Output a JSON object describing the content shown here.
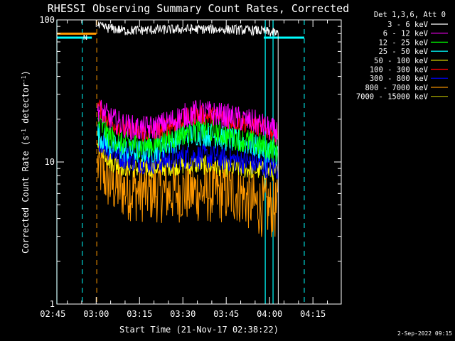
{
  "chart_data": {
    "type": "line",
    "title": "RHESSI Observing Summary Count Rates, Corrected",
    "xlabel": "Start Time (21-Nov-17 02:38:22)",
    "ylabel": "Corrected Count Rate (s",
    "ylabel_sup1": "-1",
    "ylabel_mid": " detector",
    "ylabel_sup2": "-1",
    "ylabel_end": ")",
    "yscale": "log",
    "ylim": [
      1,
      100
    ],
    "xlim_minutes": [
      -13.6,
      84.8
    ],
    "x_origin_time": "03:00",
    "x_ticks": [
      {
        "label": "02:45",
        "minutes": -15
      },
      {
        "label": "03:00",
        "minutes": 0
      },
      {
        "label": "03:15",
        "minutes": 15
      },
      {
        "label": "03:30",
        "minutes": 30
      },
      {
        "label": "03:45",
        "minutes": 45
      },
      {
        "label": "04:00",
        "minutes": 60
      },
      {
        "label": "04:15",
        "minutes": 75
      }
    ],
    "y_ticks": [
      {
        "label": "100",
        "value": 100
      },
      {
        "label": "10",
        "value": 10
      },
      {
        "label": "1",
        "value": 1
      }
    ],
    "legend_header": "Det 1,3,6, Att 0",
    "legend_position": "right",
    "series": [
      {
        "name": "3 - 6 keV",
        "color": "#ffffff",
        "x": [
          0.5,
          10,
          20,
          30,
          40,
          50,
          57,
          60,
          63
        ],
        "y": [
          90,
          84,
          85,
          86,
          86,
          85,
          84,
          82,
          80
        ]
      },
      {
        "name": "6 - 12 keV",
        "color": "#ff00ff",
        "x": [
          0.5,
          5,
          10,
          15,
          20,
          25,
          30,
          35,
          40,
          45,
          50,
          55,
          60,
          63
        ],
        "y": [
          24,
          20,
          18,
          17,
          17.5,
          19,
          21,
          22.5,
          22,
          21,
          20,
          19,
          17,
          16
        ]
      },
      {
        "name": "12 - 25 keV",
        "color": "#00ff00",
        "x": [
          0.5,
          5,
          10,
          15,
          20,
          25,
          30,
          35,
          40,
          45,
          50,
          55,
          60,
          63
        ],
        "y": [
          19,
          15,
          13.5,
          13,
          13.2,
          14.5,
          16,
          17,
          16.5,
          15.5,
          14.5,
          13.5,
          12.5,
          12
        ]
      },
      {
        "name": "25 - 50 keV",
        "color": "#00ffff",
        "x": [
          0.5,
          5,
          10,
          15,
          20,
          25,
          30,
          35,
          40,
          45,
          50,
          55,
          60,
          63
        ],
        "y": [
          16,
          13,
          12,
          11.8,
          12,
          13.5,
          15,
          16,
          15.5,
          14.5,
          14,
          13,
          12,
          11.5
        ]
      },
      {
        "name": "50 - 100 keV",
        "color": "#ffff00",
        "x": [
          0.5,
          5,
          10,
          15,
          20,
          25,
          30,
          35,
          40,
          45,
          50,
          55,
          60,
          63
        ],
        "y": [
          14,
          10,
          9.2,
          9,
          9.1,
          9.3,
          9.5,
          9.6,
          9.4,
          9.2,
          9,
          8.8,
          8.6,
          8.5
        ]
      },
      {
        "name": "100 - 300 keV",
        "color": "#ff0000",
        "x": [
          0.5,
          5,
          10,
          15,
          20,
          25,
          30,
          35,
          40,
          45,
          50,
          55,
          60,
          63
        ],
        "y": [
          25,
          19,
          17,
          16,
          16.2,
          18,
          20,
          21.5,
          21,
          20,
          19,
          18,
          16.5,
          16
        ]
      },
      {
        "name": "300 - 800 keV",
        "color": "#0000ff",
        "x": [
          0.5,
          5,
          10,
          15,
          20,
          25,
          30,
          35,
          40,
          45,
          50,
          55,
          60,
          63
        ],
        "y": [
          15,
          12,
          10.8,
          10.2,
          10,
          10.4,
          10.8,
          11,
          10.8,
          10.5,
          10.2,
          9.8,
          9.3,
          9
        ]
      },
      {
        "name": "800 - 7000 keV",
        "color": "#ff9900",
        "x": [
          -13.6,
          0,
          0.5,
          5,
          10,
          15,
          20,
          25,
          30,
          35,
          40,
          45,
          50,
          55,
          60,
          63
        ],
        "y": [
          80,
          80,
          9.5,
          7,
          6.4,
          6.2,
          6.2,
          6.1,
          6.2,
          6.2,
          6.1,
          6.1,
          6,
          5,
          4.8,
          4.6
        ]
      },
      {
        "name": "7000 - 15000 keV",
        "color": "#999900",
        "x": [],
        "y": []
      }
    ],
    "markers": {
      "cyan_level_value": 75,
      "cyan_level_segments": [
        [
          -13.6,
          -1.5
        ],
        [
          58,
          72
        ]
      ],
      "cyan_solid_lines": [
        -13.6,
        58.5,
        61.2
      ],
      "cyan_dashed_lines": [
        -4.8,
        72
      ],
      "orange_dashed_lines": [
        0.2
      ],
      "flag_labels": [
        {
          "text": "N",
          "minutes": -3.8
        }
      ]
    },
    "timestamp": "2-Sep-2022 09:15"
  }
}
